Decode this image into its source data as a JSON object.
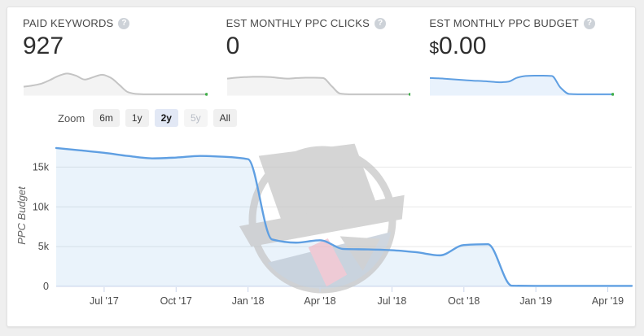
{
  "ui": {
    "help_glyph": "?"
  },
  "cards": [
    {
      "title": "PAID KEYWORDS",
      "value_prefix": "",
      "value": "927",
      "spark": {
        "line": "#c4c4c4",
        "fill": "#f3f3f3",
        "end_dot": "#3fae49",
        "values": [
          28,
          32,
          38,
          50,
          64,
          72,
          65,
          52,
          60,
          68,
          58,
          34,
          10,
          4,
          3,
          3,
          3,
          3,
          3,
          3,
          3,
          3
        ]
      }
    },
    {
      "title": "EST MONTHLY PPC CLICKS",
      "value_prefix": "",
      "value": "0",
      "spark": {
        "line": "#c4c4c4",
        "fill": "#f3f3f3",
        "end_dot": "#3fae49",
        "values": [
          55,
          58,
          60,
          61,
          61,
          60,
          57,
          55,
          57,
          58,
          58,
          57,
          30,
          5,
          3,
          3,
          3,
          3,
          3,
          3,
          3,
          3
        ]
      }
    },
    {
      "title": "EST MONTHLY PPC BUDGET",
      "value_prefix": "$",
      "value": "0.00",
      "spark": {
        "line": "#5f9fe2",
        "fill": "#e9f2fc",
        "end_dot": "#3fae49",
        "values": [
          57,
          56,
          54,
          52,
          50,
          48,
          47,
          45,
          43,
          45,
          58,
          64,
          65,
          65,
          64,
          25,
          4,
          3,
          3,
          3,
          3,
          3
        ]
      }
    }
  ],
  "zoom": {
    "label": "Zoom",
    "options": [
      {
        "label": "6m",
        "state": "default"
      },
      {
        "label": "1y",
        "state": "default"
      },
      {
        "label": "2y",
        "state": "selected"
      },
      {
        "label": "5y",
        "state": "disabled"
      },
      {
        "label": "All",
        "state": "default"
      }
    ]
  },
  "chart_data": {
    "type": "area",
    "title": "",
    "xlabel": "",
    "ylabel": "PPC Budget",
    "grid": true,
    "legend": false,
    "ylim": [
      0,
      17700
    ],
    "x": [
      "May '17",
      "Jun '17",
      "Jul '17",
      "Aug '17",
      "Sep '17",
      "Oct '17",
      "Nov '17",
      "Dec '17",
      "Jan '18",
      "Feb '18",
      "Mar '18",
      "Apr '18",
      "May '18",
      "Jun '18",
      "Jul '18",
      "Aug '18",
      "Sep '18",
      "Oct '18",
      "Nov '18",
      "Dec '18",
      "Jan '19",
      "Feb '19",
      "Mar '19",
      "Apr '19",
      "May '19"
    ],
    "values": [
      17400,
      17100,
      16800,
      16400,
      16100,
      16200,
      16400,
      16300,
      16000,
      5900,
      5500,
      5800,
      4700,
      4650,
      4550,
      4300,
      3900,
      5200,
      5300,
      80,
      60,
      60,
      60,
      60,
      60
    ],
    "yticks": [
      {
        "v": 0,
        "label": "0"
      },
      {
        "v": 5000,
        "label": "5k"
      },
      {
        "v": 10000,
        "label": "10k"
      },
      {
        "v": 15000,
        "label": "15k"
      }
    ],
    "xtick_indices": [
      2,
      5,
      8,
      11,
      14,
      17,
      20,
      23
    ],
    "xtick_labels": [
      "Jul '17",
      "Oct '17",
      "Jan '18",
      "Apr '18",
      "Jul '18",
      "Oct '18",
      "Jan '19",
      "Apr '19"
    ],
    "line_color": "#5f9fe2",
    "fill_color": "rgba(95,159,226,0.13)"
  },
  "colors": {
    "page_bg": "#efefef",
    "panel_bg": "#ffffff",
    "accent_blue": "#5f9fe2",
    "spark_gray": "#c4c4c4",
    "green_dot": "#3fae49",
    "grid_line": "#e8e8e8",
    "axis_line": "#ccd6eb",
    "zoom_selected_bg": "#e2e8f5"
  }
}
